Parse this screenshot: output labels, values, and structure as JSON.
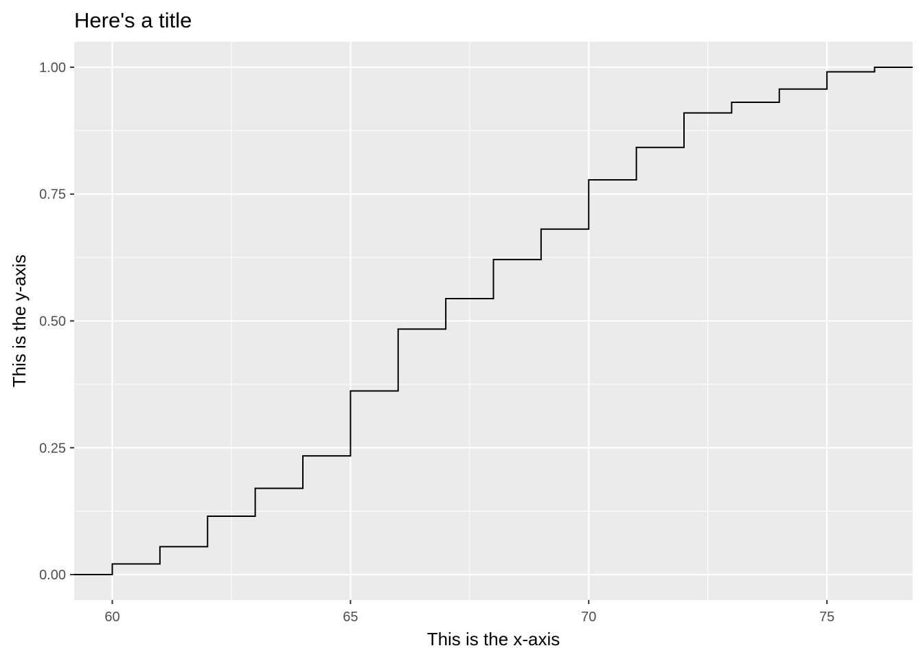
{
  "chart_data": {
    "type": "line",
    "geom": "step",
    "title": "Here's a title",
    "xlabel": "This is the x-axis",
    "ylabel": "This is the y-axis",
    "xlim": [
      59.2,
      76.8
    ],
    "ylim": [
      -0.05,
      1.05
    ],
    "x_ticks": [
      60,
      65,
      70,
      75
    ],
    "x_tick_labels": [
      "60",
      "65",
      "70",
      "75"
    ],
    "x_minor_ticks": [
      62.5,
      67.5,
      72.5
    ],
    "y_ticks": [
      0,
      0.25,
      0.5,
      0.75,
      1
    ],
    "y_tick_labels": [
      "0.00",
      "0.25",
      "0.50",
      "0.75",
      "1.00"
    ],
    "y_minor_ticks": [
      0.125,
      0.375,
      0.625,
      0.875
    ],
    "grid": true,
    "panel_background": "#ebebeb",
    "line_color": "#000000",
    "series": [
      {
        "x": [
          60,
          61,
          62,
          63,
          64,
          65,
          66,
          67,
          68,
          69,
          70,
          71,
          72,
          73,
          74,
          75,
          76
        ],
        "y": [
          0.021,
          0.055,
          0.115,
          0.17,
          0.234,
          0.362,
          0.484,
          0.544,
          0.621,
          0.681,
          0.778,
          0.842,
          0.91,
          0.931,
          0.957,
          0.991,
          1.0
        ]
      }
    ]
  }
}
